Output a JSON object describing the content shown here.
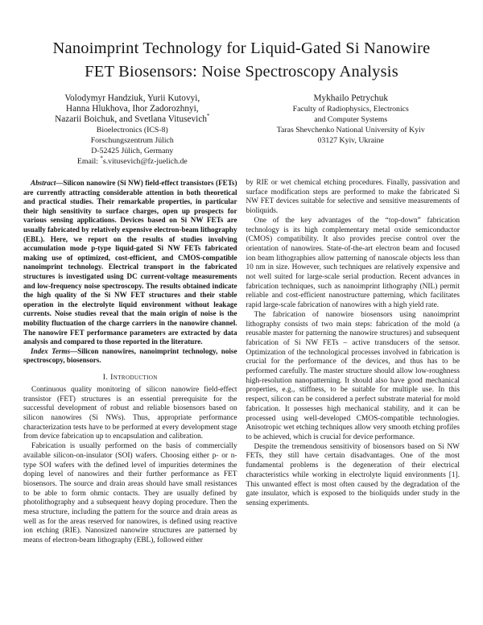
{
  "title": "Nanoimprint Technology for Liquid-Gated Si Nanowire FET Biosensors: Noise Spectroscopy Analysis",
  "authors": {
    "left": {
      "name_lines": [
        "Volodymyr Handziuk, Yurii Kutovyi,",
        "Hanna Hlukhova, Ihor Zadorozhnyi,",
        "Nazarii Boichuk, and Svetlana Vitusevich"
      ],
      "name_asterisk": "*",
      "affil_lines": [
        "Bioelectronics (ICS-8)",
        "Forschungszentrum Jülich",
        "D-52425 Jülich, Germany"
      ],
      "email_label": "Email: ",
      "email_asterisk": "*",
      "email": "s.vitusevich@fz-juelich.de"
    },
    "right": {
      "name": "Mykhailo Petrychuk",
      "affil_lines": [
        "Faculty of Radiophysics, Electronics",
        "and Computer Systems",
        "Taras Shevchenko National University of Kyiv",
        "03127 Kyiv, Ukraine"
      ]
    }
  },
  "abstract": {
    "label": "Abstract—",
    "text": "Silicon nanowire (Si NW) field-effect transistors (FETs) are currently attracting considerable attention in both theoretical and practical studies. Their remarkable properties, in particular their high sensitivity to surface charges, open up prospects for various sensing applications. Devices based on Si NW FETs are usually fabricated by relatively expensive electron-beam lithography (EBL). Here, we report on the results of studies involving accumulation mode p-type liquid-gated Si NW FETs fabricated making use of optimized, cost-efficient, and CMOS-compatible nanoimprint technology. Electrical transport in the fabricated structures is investigated using DC current-voltage measurements and low-frequency noise spectroscopy. The results obtained indicate the high quality of the Si NW FET structures and their stable operation in the electrolyte liquid environment without leakage currents. Noise studies reveal that the main origin of noise is the mobility fluctuation of the charge carriers in the nanowire channel. The nanowire FET performance parameters are extracted by data analysis and compared to those reported in the literature."
  },
  "index_terms": {
    "label": "Index Terms—",
    "text": "Silicon nanowires, nanoimprint technology, noise spectroscopy, biosensors."
  },
  "section": {
    "number": "I. ",
    "title": "Introduction"
  },
  "left_column": {
    "paragraphs": [
      "Continuous quality monitoring of silicon nanowire field-effect transistor (FET) structures is an essential prerequisite for the successful development of robust and reliable biosensors based on silicon nanowires (Si NWs). Thus, appropriate performance characterization tests have to be performed at every development stage from device fabrication up to encapsulation and calibration.",
      "Fabrication is usually performed on the basis of commercially available silicon-on-insulator (SOI) wafers. Choosing either p- or n-type SOI wafers with the defined level of impurities determines the doping level of nanowires and their further performance as FET biosensors. The source and drain areas should have small resistances to be able to form ohmic contacts. They are usually defined by photolithography and a subsequent heavy doping procedure. Then the mesa structure, including the pattern for the source and drain areas as well as for the areas reserved for nanowires, is defined using reactive ion etching (RIE). Nanosized nanowire structures are patterned by means of electron-beam lithography (EBL), followed either"
    ]
  },
  "right_column": {
    "paragraphs": [
      "by RIE or wet chemical etching procedures. Finally, passivation and surface modification steps are performed to make the fabricated Si NW FET devices suitable for selective and sensitive measurements of bioliquids.",
      "One of the key advantages of the “top-down” fabrication technology is its high complementary metal oxide semiconductor (CMOS) compatibility. It also provides precise control over the orientation of nanowires. State-of-the-art electron beam and focused ion beam lithographies allow patterning of nanoscale objects less than 10 nm in size. However, such techniques are relatively expensive and not well suited for large-scale serial production. Recent advances in fabrication techniques, such as nanoimprint lithography (NIL) permit reliable and cost-efficient nanostructure patterning, which facilitates rapid large-scale fabrication of nanowires with a high yield rate.",
      "The fabrication of nanowire biosensors using nanoimprint lithography consists of two main steps: fabrication of the mold (a reusable master for patterning the nanowire structures) and subsequent fabrication of Si NW FETs – active transducers of the sensor. Optimization of the technological processes involved in fabrication is crucial for the performance of the devices, and thus has to be performed carefully. The master structure should allow low-roughness high-resolution nanopatterning. It should also have good mechanical properties, e.g., stiffness, to be suitable for multiple use. In this respect, silicon can be considered a perfect substrate material for mold fabrication. It possesses high mechanical stability, and it can be processed using well-developed CMOS-compatible technologies. Anisotropic wet etching techniques allow very smooth etching profiles to be achieved, which is crucial for device performance.",
      "Despite the tremendous sensitivity of biosensors based on Si NW FETs, they still have certain disadvantages. One of the most fundamental problems is the degeneration of their electrical characteristics while working in electrolyte liquid environments [1]. This unwanted effect is most often caused by the degradation of the gate insulator, which is exposed to the bioliquids under study in the sensing experiments."
    ]
  }
}
